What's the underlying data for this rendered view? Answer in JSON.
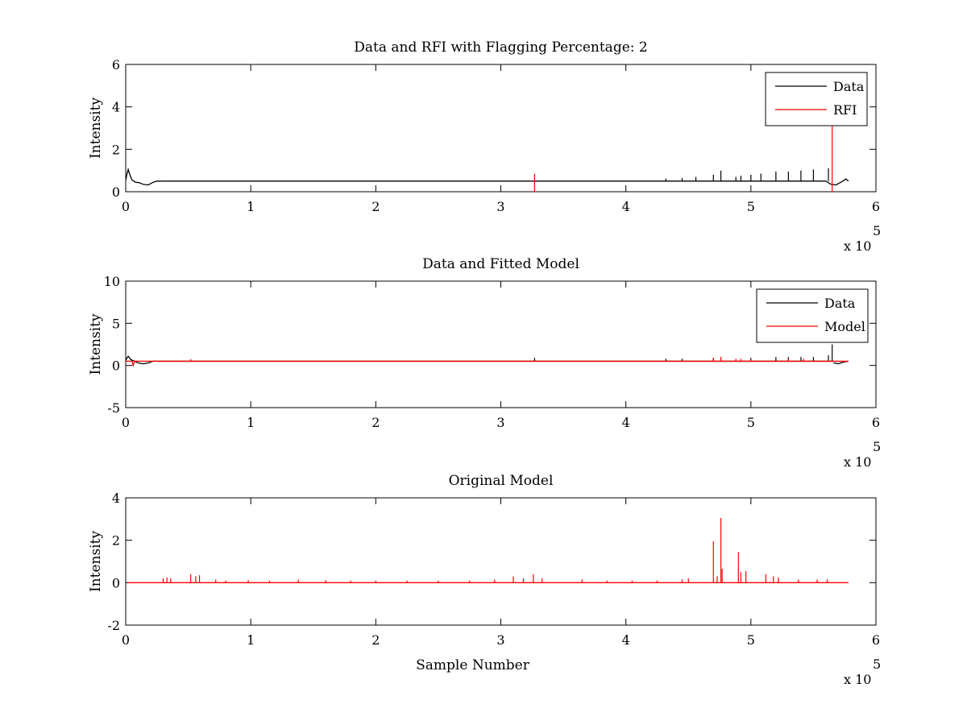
{
  "colors": {
    "data": "#000000",
    "rfi": "#ff0000",
    "model": "#ff0000",
    "background": "#ffffff"
  },
  "chart_data": [
    {
      "type": "line",
      "title": "Data and RFI with Flagging Percentage: 2",
      "xlabel": "",
      "ylabel": "Intensity",
      "xlim": [
        0,
        600000
      ],
      "ylim": [
        0,
        6
      ],
      "xticks": [
        0,
        1,
        2,
        3,
        4,
        5,
        6
      ],
      "yticks": [
        0,
        2,
        4,
        6
      ],
      "x_exponent": "x 10",
      "x_exponent_power": "5",
      "legend": {
        "position": "top-right",
        "entries": [
          "Data",
          "RFI"
        ]
      },
      "series": [
        {
          "name": "Data",
          "color": "#000000",
          "baseline": 0.5,
          "x_end": 578000,
          "segments": [
            {
              "x": [
                0,
                1000,
                2000,
                3000,
                5000,
                8000,
                11000,
                14000,
                18000,
                22000,
                25000,
                30000
              ],
              "y": [
                0.55,
                0.85,
                1.05,
                0.85,
                0.55,
                0.45,
                0.42,
                0.35,
                0.32,
                0.45,
                0.5,
                0.5
              ]
            },
            {
              "x": [
                560000,
                564000,
                568000,
                572000,
                576000,
                578000
              ],
              "y": [
                0.5,
                0.35,
                0.32,
                0.45,
                0.6,
                0.5
              ]
            }
          ],
          "spikes": [
            {
              "x": 470000,
              "y": 0.8
            },
            {
              "x": 476000,
              "y": 1.0
            },
            {
              "x": 488000,
              "y": 0.7
            },
            {
              "x": 492000,
              "y": 0.75
            },
            {
              "x": 500000,
              "y": 0.8
            },
            {
              "x": 508000,
              "y": 0.85
            },
            {
              "x": 520000,
              "y": 0.95
            },
            {
              "x": 530000,
              "y": 0.95
            },
            {
              "x": 540000,
              "y": 1.0
            },
            {
              "x": 550000,
              "y": 1.05
            },
            {
              "x": 562000,
              "y": 1.1
            },
            {
              "x": 456000,
              "y": 0.7
            },
            {
              "x": 445000,
              "y": 0.65
            },
            {
              "x": 432000,
              "y": 0.62
            }
          ]
        },
        {
          "name": "RFI",
          "color": "#ff0000",
          "spikes": [
            {
              "x": 327000,
              "y": 0.85
            },
            {
              "x": 565000,
              "y": 3.5
            }
          ]
        }
      ]
    },
    {
      "type": "line",
      "title": "Data and Fitted Model",
      "xlabel": "",
      "ylabel": "Intensity",
      "xlim": [
        0,
        600000
      ],
      "ylim": [
        -5,
        10
      ],
      "xticks": [
        0,
        1,
        2,
        3,
        4,
        5,
        6
      ],
      "yticks": [
        -5,
        0,
        5,
        10
      ],
      "x_exponent": "x 10",
      "x_exponent_power": "5",
      "legend": {
        "position": "top-right",
        "entries": [
          "Data",
          "Model"
        ]
      },
      "series": [
        {
          "name": "Data",
          "color": "#000000",
          "baseline": 0.5,
          "x_end": 578000,
          "segments": [
            {
              "x": [
                0,
                1000,
                2000,
                4000,
                7000,
                10000,
                14000,
                18000,
                22000,
                25000
              ],
              "y": [
                0.6,
                0.9,
                1.1,
                0.7,
                0.5,
                0.3,
                0.2,
                0.3,
                0.5,
                0.5
              ]
            },
            {
              "x": [
                566000,
                570000,
                574000,
                578000
              ],
              "y": [
                0.3,
                0.2,
                0.4,
                0.5
              ]
            }
          ],
          "spikes": [
            {
              "x": 327000,
              "y": 0.9
            },
            {
              "x": 432000,
              "y": 0.8
            },
            {
              "x": 445000,
              "y": 0.8
            },
            {
              "x": 470000,
              "y": 0.9
            },
            {
              "x": 476000,
              "y": 1.0
            },
            {
              "x": 500000,
              "y": 0.9
            },
            {
              "x": 520000,
              "y": 1.0
            },
            {
              "x": 530000,
              "y": 1.0
            },
            {
              "x": 540000,
              "y": 1.0
            },
            {
              "x": 550000,
              "y": 1.0
            },
            {
              "x": 562000,
              "y": 1.2
            },
            {
              "x": 565000,
              "y": 2.5
            }
          ]
        },
        {
          "name": "Model",
          "color": "#ff0000",
          "baseline": 0.5,
          "x_end": 578000,
          "segments": [
            {
              "x": [
                0,
                3000,
                5000,
                6000,
                7000,
                20000
              ],
              "y": [
                0.5,
                0.5,
                0.5,
                0.0,
                0.5,
                0.5
              ]
            }
          ],
          "spikes": [
            {
              "x": 52000,
              "y": 0.75
            },
            {
              "x": 470000,
              "y": 0.9
            },
            {
              "x": 476000,
              "y": 1.0
            },
            {
              "x": 488000,
              "y": 0.8
            },
            {
              "x": 492000,
              "y": 0.8
            },
            {
              "x": 500000,
              "y": 0.7
            },
            {
              "x": 530000,
              "y": 0.8
            },
            {
              "x": 542000,
              "y": 0.8
            }
          ]
        }
      ]
    },
    {
      "type": "line",
      "title": "Original Model",
      "xlabel": "Sample Number",
      "ylabel": "Intensity",
      "xlim": [
        0,
        600000
      ],
      "ylim": [
        -2,
        4
      ],
      "xticks": [
        0,
        1,
        2,
        3,
        4,
        5,
        6
      ],
      "yticks": [
        -2,
        0,
        2,
        4
      ],
      "x_exponent": "x 10",
      "x_exponent_power": "5",
      "series": [
        {
          "name": "",
          "color": "#ff0000",
          "baseline": 0.0,
          "x_start": 2000,
          "x_end": 578000,
          "spikes": [
            {
              "x": 30000,
              "y": 0.2
            },
            {
              "x": 33000,
              "y": 0.25
            },
            {
              "x": 36000,
              "y": 0.2
            },
            {
              "x": 52000,
              "y": 0.4
            },
            {
              "x": 56000,
              "y": 0.3
            },
            {
              "x": 59000,
              "y": 0.35
            },
            {
              "x": 72000,
              "y": 0.15
            },
            {
              "x": 80000,
              "y": 0.1
            },
            {
              "x": 98000,
              "y": 0.12
            },
            {
              "x": 115000,
              "y": 0.1
            },
            {
              "x": 138000,
              "y": 0.15
            },
            {
              "x": 160000,
              "y": 0.12
            },
            {
              "x": 180000,
              "y": 0.1
            },
            {
              "x": 200000,
              "y": 0.1
            },
            {
              "x": 225000,
              "y": 0.1
            },
            {
              "x": 250000,
              "y": 0.1
            },
            {
              "x": 275000,
              "y": 0.1
            },
            {
              "x": 295000,
              "y": 0.15
            },
            {
              "x": 310000,
              "y": 0.3
            },
            {
              "x": 318000,
              "y": 0.2
            },
            {
              "x": 326000,
              "y": 0.4
            },
            {
              "x": 333000,
              "y": 0.2
            },
            {
              "x": 365000,
              "y": 0.15
            },
            {
              "x": 385000,
              "y": 0.1
            },
            {
              "x": 405000,
              "y": 0.1
            },
            {
              "x": 425000,
              "y": 0.1
            },
            {
              "x": 445000,
              "y": 0.15
            },
            {
              "x": 450000,
              "y": 0.2
            },
            {
              "x": 470000,
              "y": 1.95
            },
            {
              "x": 473000,
              "y": 0.3
            },
            {
              "x": 476000,
              "y": 3.05
            },
            {
              "x": 477000,
              "y": 0.65
            },
            {
              "x": 490000,
              "y": 1.45
            },
            {
              "x": 492000,
              "y": 0.5
            },
            {
              "x": 496000,
              "y": 0.55
            },
            {
              "x": 512000,
              "y": 0.4
            },
            {
              "x": 518000,
              "y": 0.3
            },
            {
              "x": 522000,
              "y": 0.25
            },
            {
              "x": 538000,
              "y": 0.15
            },
            {
              "x": 553000,
              "y": 0.15
            },
            {
              "x": 561000,
              "y": 0.15
            }
          ]
        }
      ]
    }
  ]
}
